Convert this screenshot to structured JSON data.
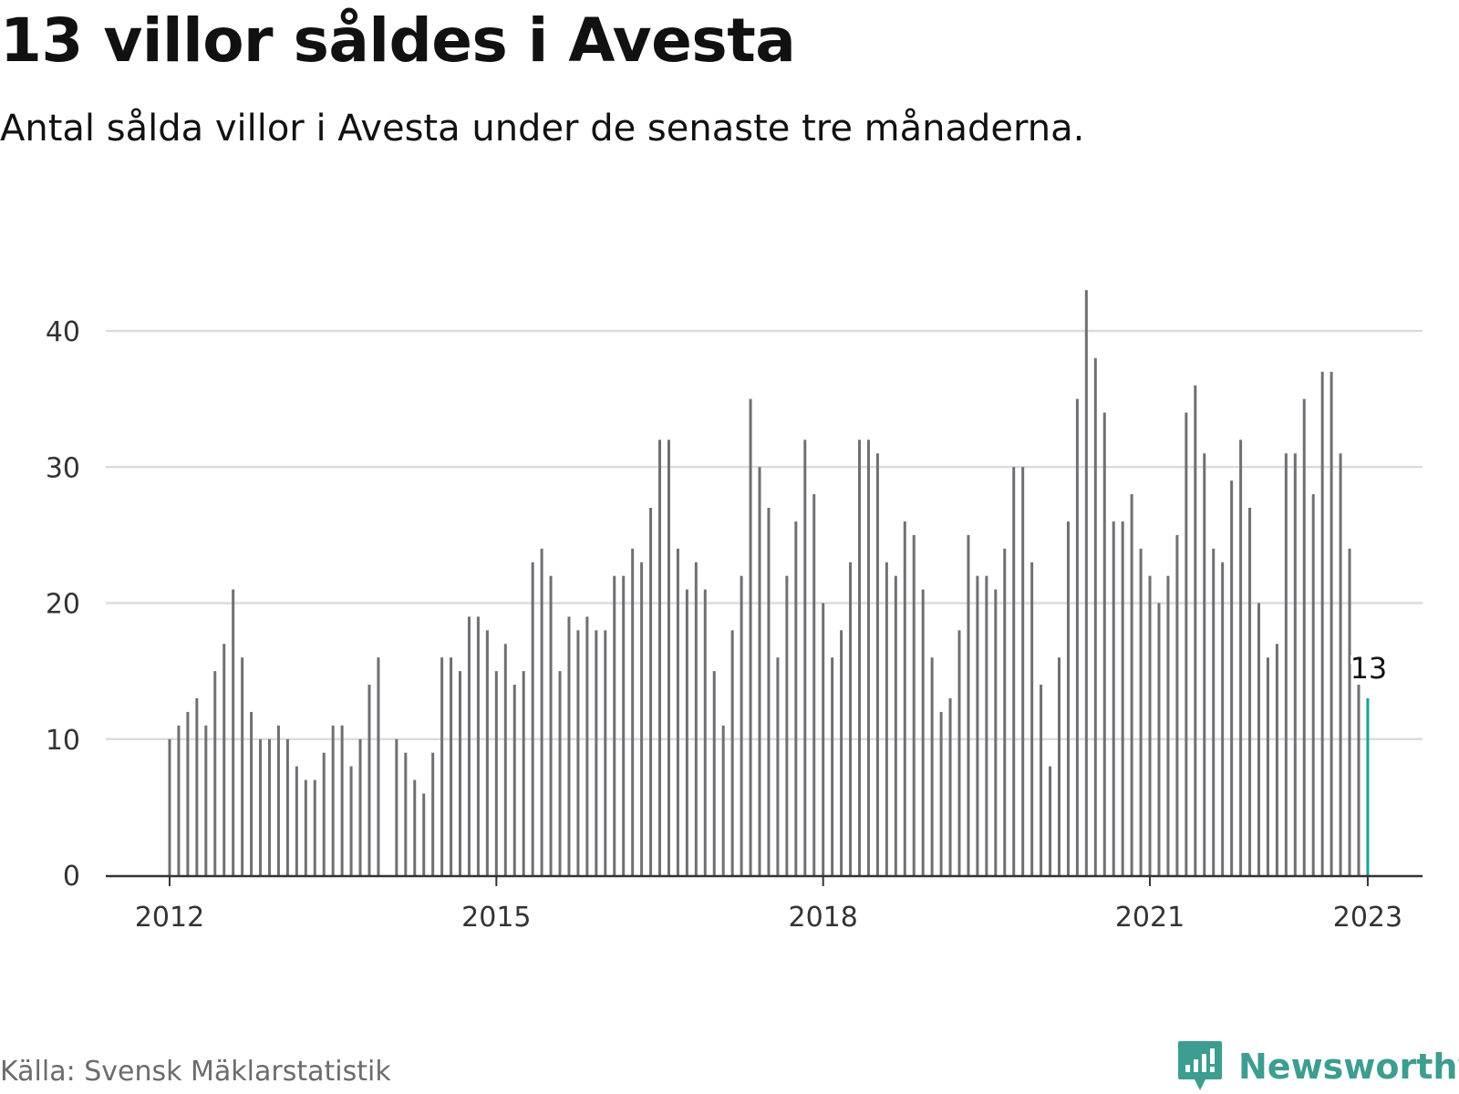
{
  "title": "13 villor såldes i Avesta",
  "subtitle": "Antal sålda villor i Avesta under de senaste tre månaderna.",
  "source": "Källa: Svensk Mäklarstatistik",
  "brand": {
    "name": "Newsworthy",
    "icon": "newsworthy-logo-icon",
    "color": "#3d9d90"
  },
  "chart_data": {
    "type": "bar",
    "xlabel": "",
    "ylabel": "",
    "ylim": [
      0,
      43
    ],
    "yticks": [
      0,
      10,
      20,
      30,
      40
    ],
    "xticks": [
      {
        "label": "2012",
        "index": 0
      },
      {
        "label": "2015",
        "index": 36
      },
      {
        "label": "2018",
        "index": 72
      },
      {
        "label": "2021",
        "index": 108
      },
      {
        "label": "2023",
        "index": 132
      }
    ],
    "grid": true,
    "bar_color": "#6f6f74",
    "highlight_color": "#17a39a",
    "highlight_index": 132,
    "highlight_label": "13",
    "start": "2012-01",
    "frequency": "monthly",
    "values": [
      10,
      11,
      12,
      13,
      11,
      15,
      17,
      21,
      16,
      12,
      10,
      10,
      11,
      10,
      8,
      7,
      7,
      9,
      11,
      11,
      8,
      10,
      14,
      16,
      null,
      10,
      9,
      7,
      6,
      9,
      16,
      16,
      15,
      19,
      19,
      18,
      15,
      17,
      14,
      15,
      23,
      24,
      22,
      15,
      19,
      18,
      19,
      18,
      18,
      22,
      22,
      24,
      23,
      27,
      32,
      32,
      24,
      21,
      23,
      21,
      15,
      11,
      18,
      22,
      35,
      30,
      27,
      16,
      22,
      26,
      32,
      28,
      20,
      16,
      18,
      23,
      32,
      32,
      31,
      23,
      22,
      26,
      25,
      21,
      16,
      12,
      13,
      18,
      25,
      22,
      22,
      21,
      24,
      30,
      30,
      23,
      14,
      8,
      16,
      26,
      35,
      43,
      38,
      34,
      26,
      26,
      28,
      24,
      22,
      20,
      22,
      25,
      34,
      36,
      31,
      24,
      23,
      29,
      32,
      27,
      20,
      16,
      17,
      31,
      31,
      35,
      28,
      37,
      37,
      31,
      24,
      14,
      13
    ]
  }
}
